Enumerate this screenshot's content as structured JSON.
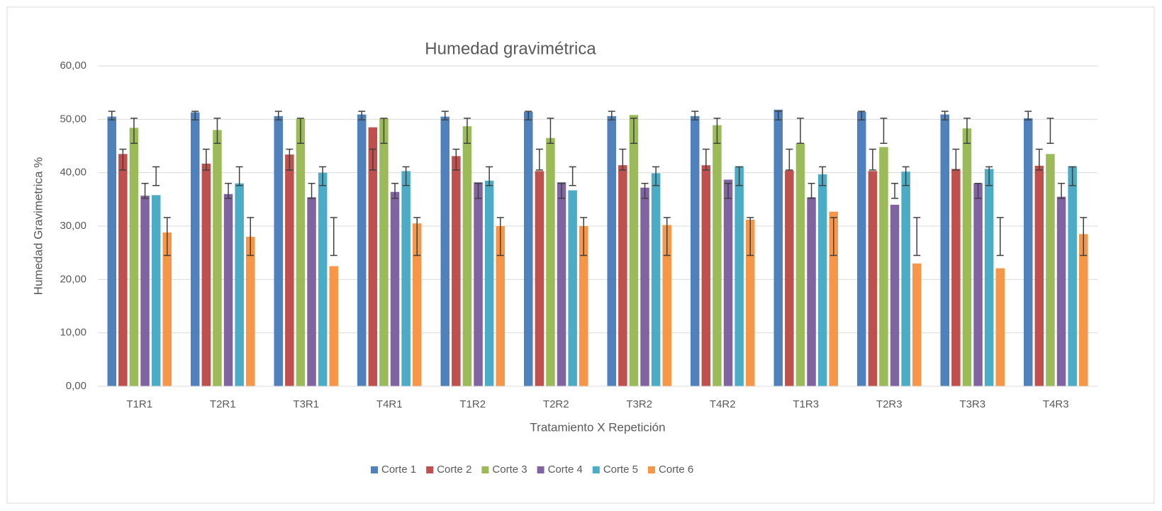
{
  "chart_data": {
    "type": "bar",
    "title": "Humedad gravimétrica",
    "x_label": "Tratamiento X Repetición",
    "y_label": "Humedad Gravimetrica %",
    "categories": [
      "T1R1",
      "T2R1",
      "T3R1",
      "T4R1",
      "T1R2",
      "T2R2",
      "T3R2",
      "T4R2",
      "T1R3",
      "T2R3",
      "T3R3",
      "T4R3"
    ],
    "series": [
      {
        "name": "Corte 1",
        "color": "#4f81bd",
        "values": [
          50.5,
          51.3,
          50.6,
          50.9,
          50.5,
          51.4,
          50.6,
          50.6,
          51.8,
          51.4,
          50.9,
          50.2
        ],
        "error_range": [
          49.9,
          51.5
        ]
      },
      {
        "name": "Corte 2",
        "color": "#c0504d",
        "values": [
          43.5,
          41.7,
          43.4,
          48.5,
          43.1,
          40.3,
          41.4,
          41.4,
          40.4,
          40.3,
          40.7,
          41.3
        ],
        "error_range": [
          40.5,
          44.4
        ]
      },
      {
        "name": "Corte 3",
        "color": "#9bbb59",
        "values": [
          48.4,
          48.0,
          50.1,
          50.2,
          48.7,
          46.5,
          50.8,
          48.9,
          45.5,
          44.8,
          48.3,
          43.5
        ],
        "error_range": [
          45.5,
          50.2
        ]
      },
      {
        "name": "Corte 4",
        "color": "#8064a2",
        "values": [
          35.7,
          36.0,
          35.4,
          36.4,
          38.2,
          38.2,
          37.2,
          38.7,
          35.4,
          34.0,
          38.0,
          35.5
        ],
        "error_range": [
          35.2,
          38.0
        ]
      },
      {
        "name": "Corte 5",
        "color": "#4bacc6",
        "values": [
          35.8,
          38.0,
          40.0,
          40.3,
          38.5,
          36.7,
          39.9,
          41.2,
          39.7,
          40.2,
          40.7,
          41.2
        ],
        "error_range": [
          37.6,
          41.1
        ]
      },
      {
        "name": "Corte 6",
        "color": "#f79646",
        "values": [
          28.8,
          28.0,
          22.5,
          30.5,
          30.0,
          30.0,
          30.2,
          31.2,
          32.7,
          23.0,
          22.1,
          28.5
        ],
        "error_range": [
          24.5,
          31.6
        ]
      }
    ],
    "ylim": [
      0,
      60
    ],
    "yticks": [
      {
        "value": 0,
        "label": "0,00"
      },
      {
        "value": 10,
        "label": "10,00"
      },
      {
        "value": 20,
        "label": "20,00"
      },
      {
        "value": 30,
        "label": "30,00"
      },
      {
        "value": 40,
        "label": "40,00"
      },
      {
        "value": 50,
        "label": "50,00"
      },
      {
        "value": 60,
        "label": "60,00"
      }
    ],
    "grid": true,
    "legend": "bottom"
  }
}
